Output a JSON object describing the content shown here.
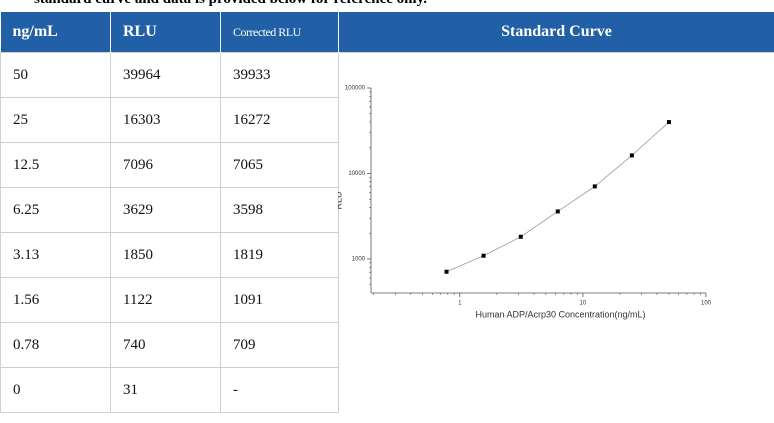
{
  "intro": "standard curve and data is provided below for reference only.",
  "table": {
    "header": [
      "ng/mL",
      "RLU",
      "Corrected RLU"
    ],
    "rows": [
      [
        50,
        39964,
        39933
      ],
      [
        25,
        16303,
        16272
      ],
      [
        12.5,
        7096,
        7065
      ],
      [
        6.25,
        3629,
        3598
      ],
      [
        3.13,
        1850,
        1819
      ],
      [
        1.56,
        1122,
        1091
      ],
      [
        0.78,
        740,
        709
      ],
      [
        0,
        31,
        "-"
      ]
    ]
  },
  "chart_data": {
    "type": "scatter",
    "title": "Standard Curve",
    "x_label": "Human ADP/Acrp30 Concentration(ng/mL)",
    "y_label": "RLU",
    "xlim": [
      0.19,
      100
    ],
    "ylim": [
      400,
      100000
    ],
    "xticks": [
      1,
      10,
      100
    ],
    "yticks": [
      1000,
      10000,
      100000
    ],
    "log_x": true,
    "log_y": true,
    "color": "#000000",
    "line_color": "#9a9a9a"
  }
}
